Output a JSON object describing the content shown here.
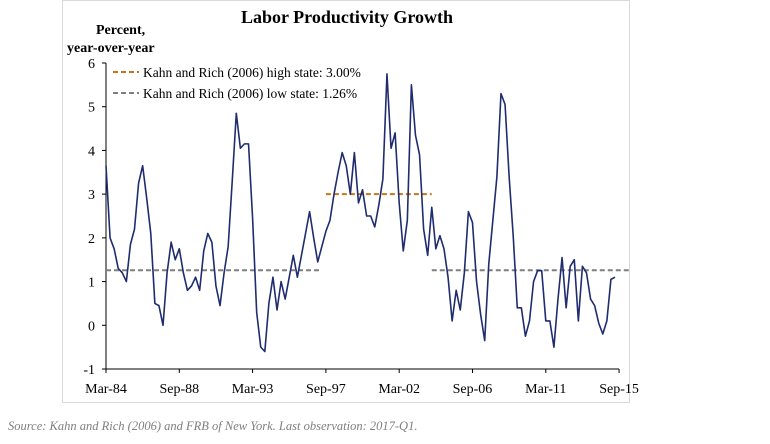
{
  "chart_data": {
    "type": "line",
    "title": "Labor Productivity Growth",
    "ylabel": "Percent,\nyear-over-year",
    "ylabel_lines": [
      "Percent,",
      "year-over-year"
    ],
    "xlabel": "",
    "ylim": [
      -1,
      6
    ],
    "yticks": [
      -1,
      0,
      1,
      2,
      3,
      4,
      5,
      6
    ],
    "xticks": [
      "Mar-84",
      "Sep-88",
      "Mar-93",
      "Sep-97",
      "Mar-02",
      "Sep-06",
      "Mar-11",
      "Sep-15"
    ],
    "grid": false,
    "legend_position": "top-left",
    "series": [
      {
        "values": [
          3.65,
          2.0,
          1.75,
          1.3,
          1.2,
          1.0,
          1.85,
          2.2,
          3.25,
          3.65,
          2.9,
          2.1,
          0.5,
          0.45,
          0.0,
          1.2,
          1.9,
          1.5,
          1.75,
          1.2,
          0.8,
          0.9,
          1.1,
          0.8,
          1.7,
          2.1,
          1.9,
          0.9,
          0.45,
          1.2,
          1.8,
          3.3,
          4.85,
          4.05,
          4.15,
          4.15,
          2.45,
          0.3,
          -0.5,
          -0.6,
          0.5,
          1.1,
          0.35,
          1.0,
          0.6,
          1.1,
          1.6,
          1.1,
          1.6,
          2.1,
          2.6,
          2.0,
          1.45,
          1.8,
          2.15,
          2.4,
          3.0,
          3.5,
          3.95,
          3.65,
          3.0,
          3.95,
          2.8,
          3.1,
          2.5,
          2.5,
          2.25,
          2.75,
          3.35,
          5.75,
          4.05,
          4.4,
          2.8,
          1.7,
          2.4,
          5.5,
          4.35,
          3.9,
          2.2,
          1.6,
          2.7,
          1.75,
          2.05,
          1.75,
          1.1,
          0.1,
          0.8,
          0.35,
          1.2,
          2.6,
          2.35,
          1.0,
          0.25,
          -0.35,
          1.4,
          2.4,
          3.4,
          5.3,
          5.05,
          3.4,
          2.05,
          0.4,
          0.4,
          -0.25,
          0.1,
          1.0,
          1.25,
          1.25,
          0.1,
          0.1,
          -0.5,
          0.6,
          1.55,
          0.4,
          1.35,
          1.5,
          0.1,
          1.35,
          1.2,
          0.6,
          0.45,
          0.05,
          -0.2,
          0.1,
          1.05,
          1.1
        ],
        "color": "#1f2c6e"
      }
    ],
    "reference_lines": [
      {
        "name": "Kahn and Rich (2006) high state: 3.00%",
        "value": 3.0,
        "segments": [
          [
            54,
            80
          ]
        ],
        "color": "#c6761f",
        "dash": "dashed"
      },
      {
        "name": "Kahn and Rich (2006) low state: 1.26%",
        "value": 1.26,
        "segments": [
          [
            0,
            53
          ],
          [
            80,
            129
          ]
        ],
        "color": "#7f7f7f",
        "dash": "dashed"
      }
    ]
  },
  "source_note": "Source: Kahn and Rich (2006) and FRB of New York. Last observation: 2017-Q1."
}
